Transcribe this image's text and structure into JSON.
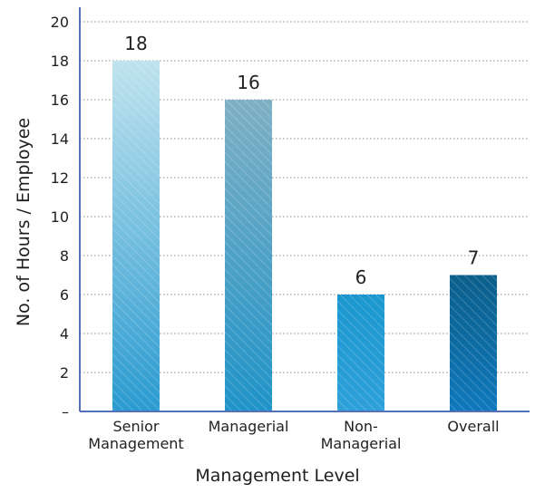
{
  "chart_data": {
    "type": "bar",
    "categories": [
      [
        "Senior",
        "Management"
      ],
      [
        "Managerial"
      ],
      [
        "Non-",
        "Managerial"
      ],
      [
        "Overall"
      ]
    ],
    "values": [
      18,
      16,
      6,
      7
    ],
    "data_labels": [
      "18",
      "16",
      "6",
      "7"
    ],
    "y_ticks": [
      "–",
      "2",
      "4",
      "6",
      "8",
      "10",
      "12",
      "14",
      "16",
      "18",
      "20"
    ],
    "ylim": [
      0,
      20
    ],
    "xlabel": "Management Level",
    "ylabel": "No. of Hours / Employee",
    "grid": true,
    "bar_gradients": [
      [
        "#bfe3ee",
        "#2a9ad0"
      ],
      [
        "#7fb0c4",
        "#1f93c8"
      ],
      [
        "#1b97cf",
        "#2ea0da"
      ],
      [
        "#0b5f8a",
        "#0f78bc"
      ]
    ]
  }
}
